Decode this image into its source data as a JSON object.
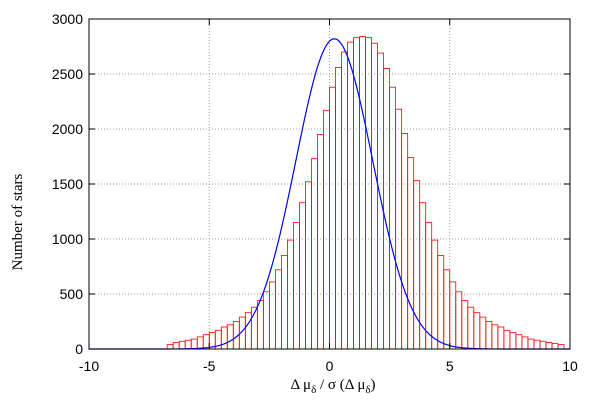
{
  "chart_data": {
    "type": "bar",
    "subtype": "histogram",
    "xlabel": "Δ μ",
    "xlabel_sub": "δ",
    "xlabel_mid": " / σ (Δ μ",
    "xlabel_end": ")",
    "ylabel": "Number of stars",
    "xlim": [
      -10,
      10
    ],
    "ylim": [
      0,
      3000
    ],
    "x_ticks": [
      -10,
      -5,
      0,
      5,
      10
    ],
    "y_ticks": [
      0,
      500,
      1000,
      1500,
      2000,
      2500,
      3000
    ],
    "grid": true,
    "bin_width": 0.25,
    "bin_start": -6.75,
    "histogram_values": [
      40,
      60,
      70,
      80,
      90,
      110,
      130,
      150,
      170,
      200,
      220,
      250,
      290,
      330,
      380,
      440,
      520,
      610,
      720,
      850,
      990,
      1150,
      1330,
      1520,
      1730,
      1950,
      2170,
      2380,
      2560,
      2700,
      2790,
      2830,
      2840,
      2830,
      2780,
      2690,
      2550,
      2380,
      2180,
      1960,
      1740,
      1530,
      1330,
      1150,
      990,
      850,
      720,
      610,
      520,
      440,
      380,
      330,
      290,
      250,
      220,
      200,
      170,
      150,
      130,
      110,
      90,
      80,
      70,
      60,
      50,
      40
    ],
    "fit": {
      "type": "gaussian",
      "amplitude": 2820,
      "mean": 0.2,
      "sigma": 1.6
    },
    "colors": {
      "histogram": "#ff0000",
      "fit": "#0000ff",
      "grid": "#a0a0a0"
    }
  }
}
